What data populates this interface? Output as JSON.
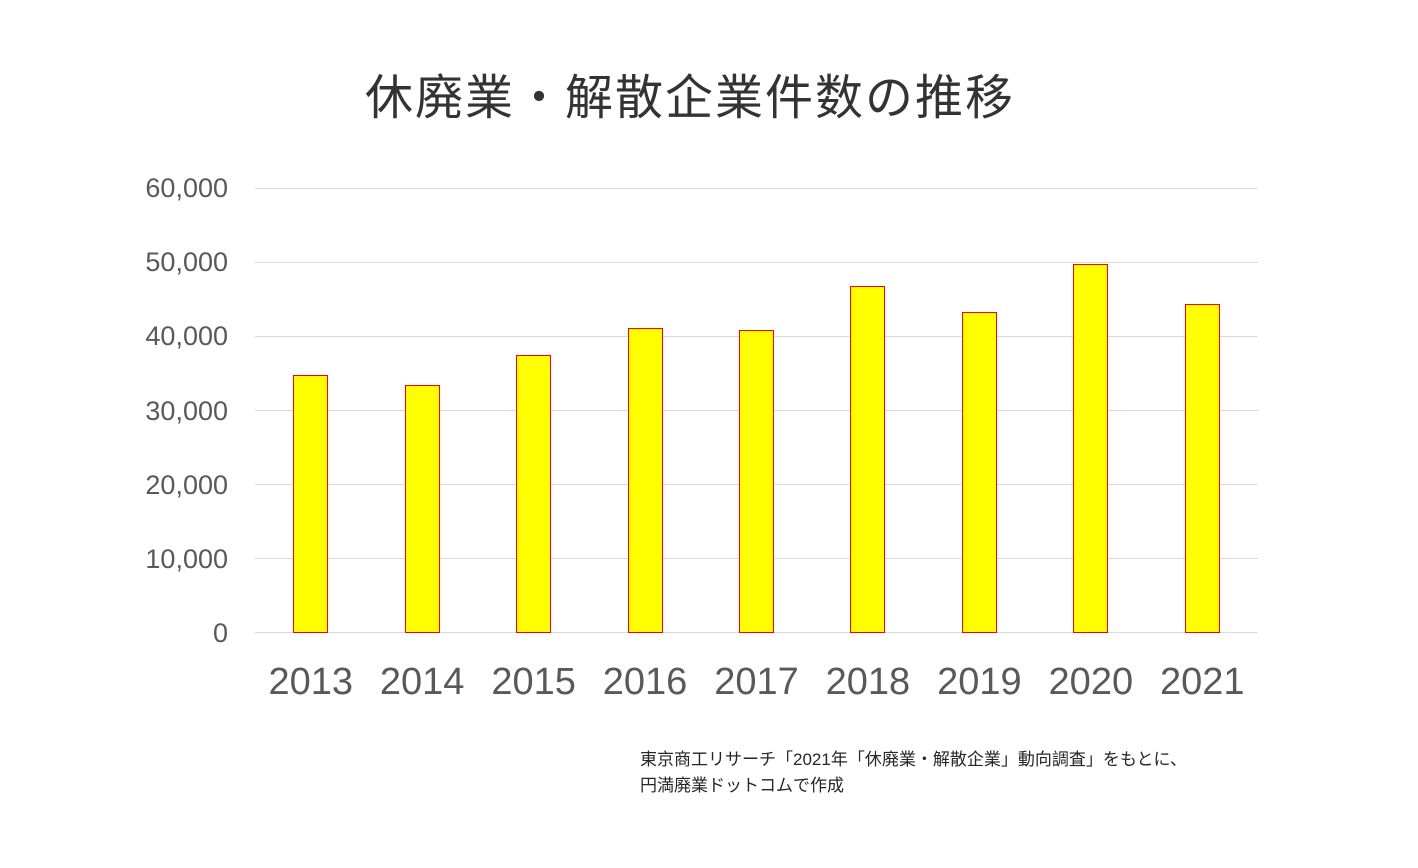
{
  "chart_data": {
    "type": "bar",
    "title": "休廃業・解散企業件数の推移",
    "categories": [
      "2013",
      "2014",
      "2015",
      "2016",
      "2017",
      "2018",
      "2019",
      "2020",
      "2021"
    ],
    "values": [
      34800,
      33475,
      37548,
      41162,
      40909,
      46724,
      43348,
      49698,
      44377
    ],
    "xlabel": "",
    "ylabel": "",
    "ylim": [
      0,
      60000
    ],
    "ytick_step": 10000,
    "ytick_labels": [
      "0",
      "10,000",
      "20,000",
      "30,000",
      "40,000",
      "50,000",
      "60,000"
    ],
    "grid": true,
    "legend": false,
    "bar_fill": "#FFFF00",
    "bar_border": "#FF0000"
  },
  "source": {
    "line1": "東京商工リサーチ「2021年「休廃業・解散企業」動向調査」をもとに、",
    "line2": "円満廃業ドットコムで作成"
  },
  "colors": {
    "background": "#FFFFFF",
    "title_text": "#333333",
    "axis_text": "#595959",
    "gridline": "#D9D9D9",
    "source_text": "#262626"
  }
}
